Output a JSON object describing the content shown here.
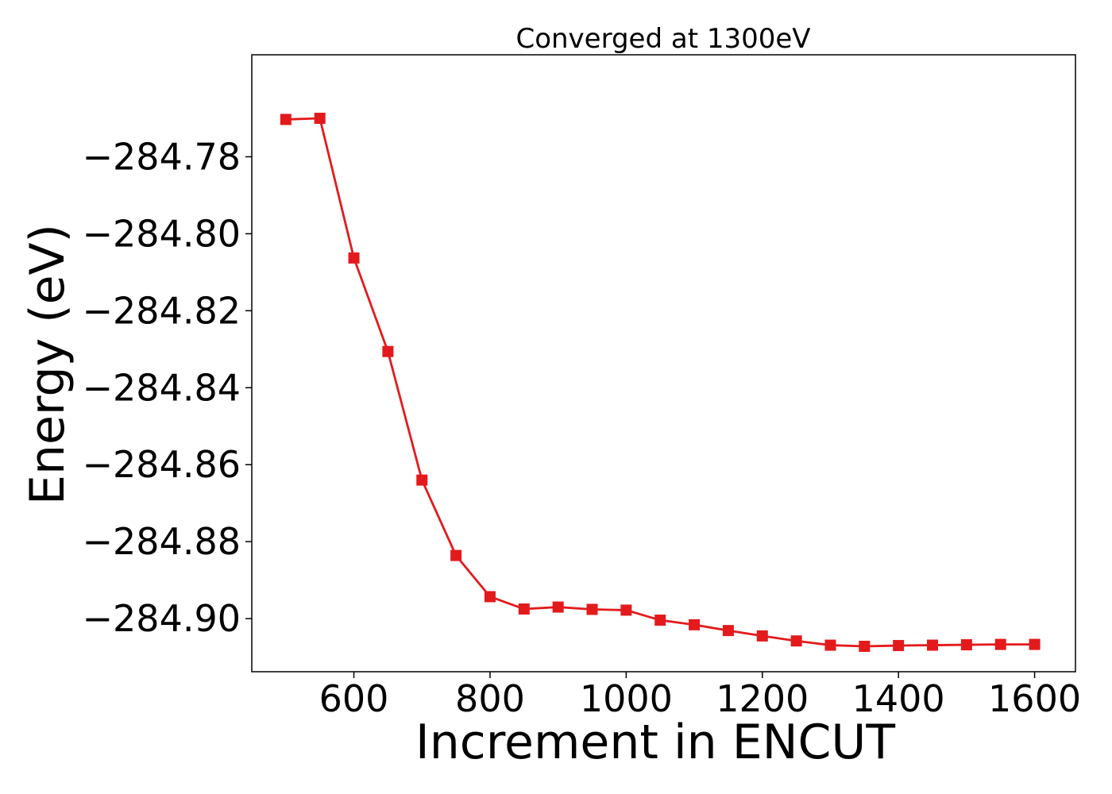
{
  "colors": {
    "series": "#e31a1c",
    "axes": "#000000",
    "background": "#ffffff"
  },
  "chart_data": {
    "type": "line",
    "title": "Converged at 1300eV",
    "xlabel": "Increment in ENCUT",
    "ylabel": "Energy (eV)",
    "xlim": [
      450,
      1660
    ],
    "ylim": [
      -284.9138,
      -284.7535
    ],
    "x_ticks": [
      600,
      800,
      1000,
      1200,
      1400,
      1600
    ],
    "x_tick_labels": [
      "600",
      "800",
      "1000",
      "1200",
      "1400",
      "1600"
    ],
    "y_ticks": [
      -284.78,
      -284.8,
      -284.82,
      -284.84,
      -284.86,
      -284.88,
      -284.9
    ],
    "y_tick_labels": [
      "−284.78",
      "−284.80",
      "−284.82",
      "−284.84",
      "−284.86",
      "−284.88",
      "−284.90"
    ],
    "grid": false,
    "legend": "none",
    "marker": "square",
    "x": [
      500,
      550,
      600,
      650,
      700,
      750,
      800,
      850,
      900,
      950,
      1000,
      1050,
      1100,
      1150,
      1200,
      1250,
      1300,
      1350,
      1400,
      1450,
      1500,
      1550,
      1600
    ],
    "series": [
      {
        "values": [
          -284.7703,
          -284.77,
          -284.8063,
          -284.8306,
          -284.864,
          -284.8836,
          -284.8943,
          -284.8975,
          -284.897,
          -284.8976,
          -284.8978,
          -284.9004,
          -284.9016,
          -284.9031,
          -284.9045,
          -284.9058,
          -284.9069,
          -284.9072,
          -284.907,
          -284.9069,
          -284.9068,
          -284.9067,
          -284.9067
        ]
      }
    ]
  }
}
